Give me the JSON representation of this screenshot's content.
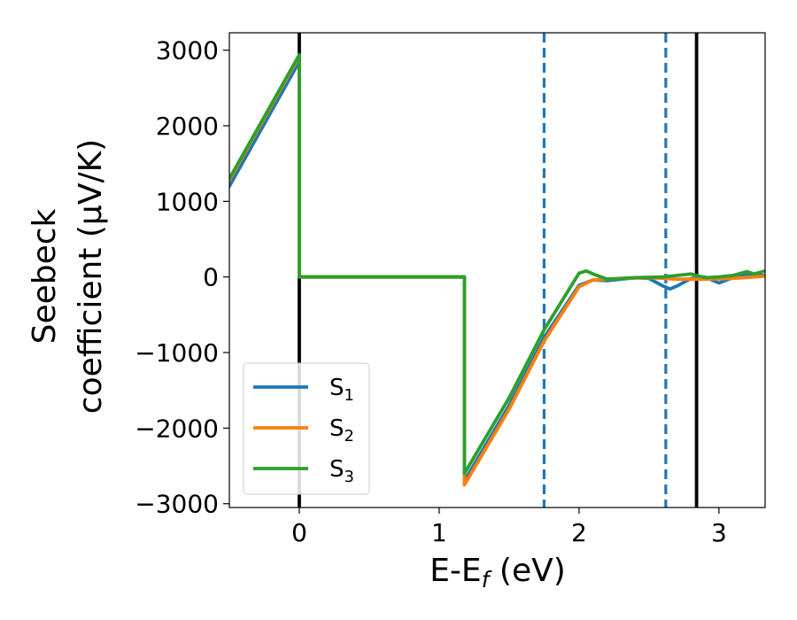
{
  "chart_data": {
    "type": "line",
    "title": "",
    "xlabel": "E-E",
    "xlabel_sub": "f",
    "xlabel_units": " (eV)",
    "ylabel_line1": "Seebeck",
    "ylabel_line2": "coefficient  (μV/K)",
    "xlim": [
      -0.5,
      3.33
    ],
    "ylim": [
      -3050,
      3230
    ],
    "xticks": [
      0,
      1,
      2,
      3
    ],
    "xtick_labels": [
      "0",
      "1",
      "2",
      "3"
    ],
    "yticks": [
      -3000,
      -2000,
      -1000,
      0,
      1000,
      2000,
      3000
    ],
    "ytick_labels": [
      "−3000",
      "−2000",
      "−1000",
      "0",
      "1000",
      "2000",
      "3000"
    ],
    "grid": false,
    "legend_position": "lower-left",
    "vlines": [
      {
        "x": 0.0,
        "style": "solid",
        "color": "#000000"
      },
      {
        "x": 2.84,
        "style": "solid",
        "color": "#000000"
      },
      {
        "x": 1.75,
        "style": "dashed",
        "color": "#1f77b4"
      },
      {
        "x": 2.62,
        "style": "dashed",
        "color": "#1f77b4"
      }
    ],
    "series": [
      {
        "name": "S",
        "name_sub": "1",
        "color": "#1f77b4",
        "x": [
          -0.5,
          0.0,
          0.0,
          1.18,
          1.18,
          1.5,
          1.75,
          2.0,
          2.1,
          2.2,
          2.3,
          2.4,
          2.5,
          2.6,
          2.65,
          2.7,
          2.8,
          2.9,
          3.0,
          3.1,
          3.2,
          3.33
        ],
        "y": [
          1200,
          2850,
          0,
          0,
          -2700,
          -1700,
          -800,
          -110,
          -40,
          -50,
          -30,
          -10,
          -20,
          -120,
          -160,
          -120,
          -20,
          0,
          -80,
          -10,
          30,
          20
        ]
      },
      {
        "name": "S",
        "name_sub": "2",
        "color": "#ff7f0e",
        "x": [
          -0.5,
          0.0,
          0.0,
          1.18,
          1.18,
          1.5,
          1.75,
          2.0,
          2.1,
          2.3,
          2.5,
          2.7,
          2.9,
          3.1,
          3.33
        ],
        "y": [
          1280,
          2920,
          0,
          0,
          -2750,
          -1750,
          -850,
          -130,
          -40,
          -20,
          -10,
          -30,
          -30,
          -20,
          10
        ]
      },
      {
        "name": "S",
        "name_sub": "3",
        "color": "#2ca02c",
        "x": [
          -0.5,
          0.0,
          0.0,
          1.18,
          1.18,
          1.5,
          1.75,
          2.0,
          2.05,
          2.1,
          2.2,
          2.4,
          2.6,
          2.8,
          2.9,
          3.0,
          3.1,
          3.2,
          3.25,
          3.33
        ],
        "y": [
          1300,
          2940,
          0,
          0,
          -2600,
          -1600,
          -700,
          50,
          80,
          40,
          -30,
          -10,
          0,
          40,
          -10,
          0,
          20,
          70,
          40,
          80
        ]
      }
    ]
  }
}
